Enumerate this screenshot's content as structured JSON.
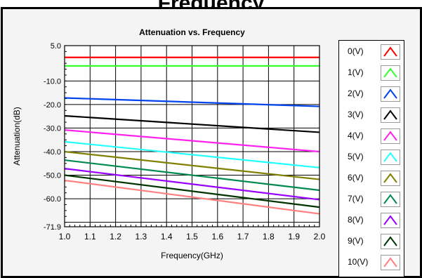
{
  "header": {
    "title": "Frequency"
  },
  "chart_data": {
    "type": "line",
    "title": "Attenuation vs. Frequency",
    "xlabel": "Frequency(GHz)",
    "ylabel": "Attenuation(dB)",
    "xlim": [
      1.0,
      2.0
    ],
    "ylim": [
      -71.9,
      5.0
    ],
    "grid": true,
    "legend": "right",
    "x_ticks": [
      "1.0",
      "1.1",
      "1.2",
      "1.3",
      "1.4",
      "1.5",
      "1.6",
      "1.7",
      "1.8",
      "1.9",
      "2.0"
    ],
    "y_ticks": [
      "5.0",
      "-10.0",
      "-20.0",
      "-30.0",
      "-40.0",
      "-50.0",
      "-60.0",
      "-71.9"
    ],
    "x": [
      1.0,
      2.0
    ],
    "series": [
      {
        "name": "0(V)",
        "color": "#ff0000",
        "values": [
          0.0,
          0.0
        ]
      },
      {
        "name": "1(V)",
        "color": "#33ff33",
        "values": [
          -3.6,
          -3.6
        ]
      },
      {
        "name": "2(V)",
        "color": "#0044ee",
        "values": [
          -17.2,
          -20.8
        ]
      },
      {
        "name": "3(V)",
        "color": "#000000",
        "values": [
          -24.8,
          -31.8
        ]
      },
      {
        "name": "4(V)",
        "color": "#ff22ee",
        "values": [
          -30.8,
          -40.0
        ]
      },
      {
        "name": "5(V)",
        "color": "#22ffff",
        "values": [
          -35.8,
          -46.8
        ]
      },
      {
        "name": "6(V)",
        "color": "#808000",
        "values": [
          -40.0,
          -51.8
        ]
      },
      {
        "name": "7(V)",
        "color": "#008a50",
        "values": [
          -43.6,
          -56.4
        ]
      },
      {
        "name": "8(V)",
        "color": "#9900ff",
        "values": [
          -47.2,
          -60.4
        ]
      },
      {
        "name": "9(V)",
        "color": "#003300",
        "values": [
          -50.0,
          -63.6
        ]
      },
      {
        "name": "10(V)",
        "color": "#ff8080",
        "values": [
          -52.2,
          -66.4
        ]
      }
    ]
  }
}
